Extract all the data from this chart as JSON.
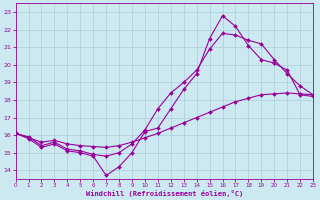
{
  "xlabel": "Windchill (Refroidissement éolien,°C)",
  "bg_color": "#cce8f0",
  "line_color": "#990099",
  "grid_color": "#aaccdd",
  "xmin": 0,
  "xmax": 23,
  "ymin": 13.5,
  "ymax": 23.5,
  "yticks": [
    14,
    15,
    16,
    17,
    18,
    19,
    20,
    21,
    22,
    23
  ],
  "xticks": [
    0,
    1,
    2,
    3,
    4,
    5,
    6,
    7,
    8,
    9,
    10,
    11,
    12,
    13,
    14,
    15,
    16,
    17,
    18,
    19,
    20,
    21,
    22,
    23
  ],
  "line1_x": [
    0,
    1,
    2,
    3,
    4,
    5,
    6,
    7,
    8,
    9,
    10,
    11,
    12,
    13,
    14,
    15,
    16,
    17,
    18,
    19,
    20,
    21,
    22,
    23
  ],
  "line1_y": [
    16.1,
    15.8,
    15.3,
    15.5,
    15.1,
    15.0,
    14.8,
    13.7,
    14.2,
    15.0,
    16.2,
    16.4,
    17.5,
    18.6,
    19.5,
    21.5,
    22.8,
    22.2,
    21.1,
    20.3,
    20.1,
    19.7,
    18.3,
    18.2
  ],
  "line2_x": [
    0,
    1,
    2,
    3,
    4,
    5,
    6,
    7,
    8,
    9,
    10,
    11,
    12,
    13,
    14,
    15,
    16,
    17,
    18,
    19,
    20,
    21,
    22,
    23
  ],
  "line2_y": [
    16.1,
    15.85,
    15.6,
    15.7,
    15.5,
    15.4,
    15.35,
    15.3,
    15.4,
    15.6,
    15.85,
    16.1,
    16.4,
    16.7,
    17.0,
    17.3,
    17.6,
    17.9,
    18.1,
    18.3,
    18.35,
    18.4,
    18.35,
    18.3
  ],
  "line3_x": [
    0,
    1,
    2,
    3,
    4,
    5,
    6,
    7,
    8,
    9,
    10,
    11,
    12,
    13,
    14,
    15,
    16,
    17,
    18,
    19,
    20,
    21,
    22,
    23
  ],
  "line3_y": [
    16.1,
    15.9,
    15.4,
    15.6,
    15.2,
    15.1,
    14.9,
    14.8,
    15.0,
    15.5,
    16.3,
    17.5,
    18.4,
    19.0,
    19.7,
    20.9,
    21.8,
    21.7,
    21.4,
    21.2,
    20.3,
    19.5,
    18.8,
    18.3
  ]
}
